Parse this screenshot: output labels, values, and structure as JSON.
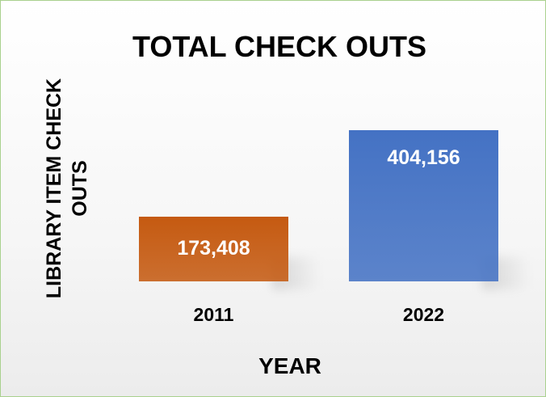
{
  "chart_data": {
    "type": "bar",
    "title": "TOTAL CHECK OUTS",
    "x_label": "YEAR",
    "y_label": "LIBRARY ITEM CHECK OUTS",
    "categories": [
      "2011",
      "2022"
    ],
    "values": [
      173408,
      404156
    ],
    "value_labels": [
      "173,408",
      "404,156"
    ],
    "colors": [
      "#c55a11",
      "#4472c4"
    ],
    "ylim": [
      0,
      450000
    ]
  }
}
